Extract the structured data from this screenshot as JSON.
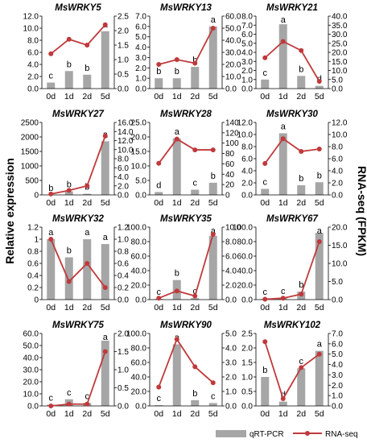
{
  "figure": {
    "left_axis_label": "Relative expression",
    "right_axis_label": "RNA-seq (FPKM)",
    "legend": {
      "bar_label": "qRT-PCR",
      "line_label": "RNA-seq"
    },
    "colors": {
      "bar": "#a6a6a6",
      "line": "#c0393b"
    }
  },
  "chart_data": [
    {
      "type": "bar",
      "title": "MsWRKY5",
      "categories": [
        "0d",
        "1d",
        "2d",
        "5d"
      ],
      "series": [
        {
          "name": "qRT-PCR",
          "axis": "left",
          "values": [
            1.0,
            2.9,
            2.3,
            9.5
          ],
          "letters": [
            "c",
            "b",
            "b",
            "a"
          ]
        },
        {
          "name": "RNA-seq",
          "axis": "right",
          "type": "line",
          "values": [
            1.2,
            1.7,
            1.5,
            2.2
          ]
        }
      ],
      "left_ticks": [
        "0.0",
        "2.0",
        "4.0",
        "6.0",
        "8.0",
        "10.0",
        "12.0"
      ],
      "left_max": 12,
      "right_ticks": [
        "0.0",
        "0.5",
        "1.0",
        "1.5",
        "2.0",
        "2.5"
      ],
      "right_max": 2.5
    },
    {
      "type": "bar",
      "title": "MsWRKY13",
      "categories": [
        "0d",
        "1d",
        "2d",
        "5d"
      ],
      "series": [
        {
          "name": "qRT-PCR",
          "axis": "left",
          "values": [
            1.0,
            1.0,
            2.1,
            6.0
          ],
          "letters": [
            "b",
            "b",
            "b",
            "a"
          ]
        },
        {
          "name": "RNA-seq",
          "axis": "right",
          "type": "line",
          "values": [
            20,
            24,
            21,
            50
          ]
        }
      ],
      "left_ticks": [
        "0.0",
        "1.0",
        "2.0",
        "3.0",
        "4.0",
        "5.0",
        "6.0",
        "7.0"
      ],
      "left_max": 7,
      "right_ticks": [
        "0.0",
        "10.0",
        "20.0",
        "30.0",
        "40.0",
        "50.0",
        "60.0"
      ],
      "right_max": 60
    },
    {
      "type": "bar",
      "title": "MsWRKY21",
      "categories": [
        "0d",
        "1d",
        "2d",
        "5d"
      ],
      "series": [
        {
          "name": "qRT-PCR",
          "axis": "left",
          "values": [
            1.0,
            7.1,
            1.4,
            0.3
          ],
          "letters": [
            "c",
            "a",
            "b",
            "d"
          ]
        },
        {
          "name": "RNA-seq",
          "axis": "right",
          "type": "line",
          "values": [
            17,
            26,
            21,
            4
          ]
        }
      ],
      "left_ticks": [
        "0.0",
        "1.0",
        "2.0",
        "3.0",
        "4.0",
        "5.0",
        "6.0",
        "7.0",
        "8.0"
      ],
      "left_max": 8,
      "right_ticks": [
        "0.0",
        "5.0",
        "10.0",
        "15.0",
        "20.0",
        "25.0",
        "30.0",
        "35.0",
        "40.0"
      ],
      "right_max": 40
    },
    {
      "type": "bar",
      "title": "MsWRKY27",
      "categories": [
        "0d",
        "1d",
        "2d",
        "5d"
      ],
      "series": [
        {
          "name": "qRT-PCR",
          "axis": "left",
          "values": [
            1,
            120,
            40,
            1850
          ],
          "letters": [
            "b",
            "b",
            "b",
            "a"
          ]
        },
        {
          "name": "RNA-seq",
          "axis": "right",
          "type": "line",
          "values": [
            0.2,
            1.0,
            2.0,
            13.0
          ]
        }
      ],
      "left_ticks": [
        "0",
        "500",
        "1000",
        "1500",
        "2000",
        "2500"
      ],
      "left_max": 2500,
      "right_ticks": [
        "0.0",
        "2.0",
        "4.0",
        "6.0",
        "8.0",
        "10.0",
        "12.0",
        "14.0",
        "16.0"
      ],
      "right_max": 16
    },
    {
      "type": "bar",
      "title": "MsWRKY28",
      "categories": [
        "0d",
        "1d",
        "2d",
        "5d"
      ],
      "series": [
        {
          "name": "qRT-PCR",
          "axis": "left",
          "values": [
            1.0,
            19.5,
            1.8,
            4.2
          ],
          "letters": [
            "d",
            "a",
            "c",
            "b"
          ]
        },
        {
          "name": "RNA-seq",
          "axis": "right",
          "type": "line",
          "values": [
            61,
            108,
            87,
            87
          ]
        }
      ],
      "left_ticks": [
        "0.0",
        "5.0",
        "10.0",
        "15.0",
        "20.0",
        "25.0"
      ],
      "left_max": 25,
      "right_ticks": [
        "0",
        "20",
        "40",
        "60",
        "80",
        "100",
        "120",
        "140"
      ],
      "right_max": 140
    },
    {
      "type": "bar",
      "title": "MsWRKY30",
      "categories": [
        "0d",
        "1d",
        "2d",
        "5d"
      ],
      "series": [
        {
          "name": "qRT-PCR",
          "axis": "left",
          "values": [
            1.0,
            10.2,
            1.6,
            2.1
          ],
          "letters": [
            "c",
            "a",
            "b",
            "b"
          ]
        },
        {
          "name": "RNA-seq",
          "axis": "right",
          "type": "line",
          "values": [
            5.2,
            9.3,
            7.2,
            7.6
          ]
        }
      ],
      "left_ticks": [
        "0.0",
        "2.0",
        "4.0",
        "6.0",
        "8.0",
        "10.0",
        "12.0"
      ],
      "left_max": 12,
      "right_ticks": [
        "0.0",
        "2.0",
        "4.0",
        "6.0",
        "8.0",
        "10.0",
        "12.0"
      ],
      "right_max": 12
    },
    {
      "type": "bar",
      "title": "MsWRKY32",
      "categories": [
        "0d",
        "1d",
        "2d",
        "5d"
      ],
      "series": [
        {
          "name": "qRT-PCR",
          "axis": "left",
          "values": [
            1.0,
            0.7,
            1.0,
            0.92
          ],
          "letters": [
            "a",
            "b",
            "a",
            "a"
          ]
        },
        {
          "name": "RNA-seq",
          "axis": "right",
          "type": "line",
          "values": [
            1.0,
            0.3,
            0.6,
            0.2
          ]
        }
      ],
      "left_ticks": [
        "0",
        "0.2",
        "0.4",
        "0.6",
        "0.8",
        "1",
        "1.2"
      ],
      "left_max": 1.2,
      "right_ticks": [
        "0.0",
        "0.2",
        "0.4",
        "0.6",
        "0.8",
        "1.0",
        "1.2"
      ],
      "right_max": 1.2
    },
    {
      "type": "bar",
      "title": "MsWRKY35",
      "categories": [
        "0d",
        "1d",
        "2d",
        "5d"
      ],
      "series": [
        {
          "name": "qRT-PCR",
          "axis": "left",
          "values": [
            1.0,
            27,
            2,
            88
          ],
          "letters": [
            "c",
            "b",
            "c",
            "a"
          ]
        },
        {
          "name": "RNA-seq",
          "axis": "right",
          "type": "line",
          "values": [
            0.2,
            1.2,
            0.5,
            9.0
          ]
        }
      ],
      "left_ticks": [
        "0.0",
        "20.0",
        "40.0",
        "60.0",
        "80.0",
        "100.0"
      ],
      "left_max": 100,
      "right_ticks": [
        "0.0",
        "2.0",
        "4.0",
        "6.0",
        "8.0",
        "10.0"
      ],
      "right_max": 10
    },
    {
      "type": "bar",
      "title": "MsWRKY67",
      "categories": [
        "0d",
        "1d",
        "2d",
        "5d"
      ],
      "series": [
        {
          "name": "qRT-PCR",
          "axis": "left",
          "values": [
            1.0,
            2.0,
            11,
            92
          ],
          "letters": [
            "c",
            "c",
            "b",
            "a"
          ]
        },
        {
          "name": "RNA-seq",
          "axis": "right",
          "type": "line",
          "values": [
            0.1,
            0.4,
            1.5,
            16.0
          ]
        }
      ],
      "left_ticks": [
        "0.0",
        "20.0",
        "40.0",
        "60.0",
        "80.0",
        "100.0"
      ],
      "left_max": 100,
      "right_ticks": [
        "0.0",
        "5.0",
        "10.0",
        "15.0",
        "20.0"
      ],
      "right_max": 20
    },
    {
      "type": "bar",
      "title": "MsWRKY75",
      "categories": [
        "0d",
        "1d",
        "2d",
        "5d"
      ],
      "series": [
        {
          "name": "qRT-PCR",
          "axis": "left",
          "values": [
            1.0,
            5.5,
            2.5,
            54
          ],
          "letters": [
            "c",
            "c",
            "c",
            "a"
          ]
        },
        {
          "name": "RNA-seq",
          "axis": "right",
          "type": "line",
          "values": [
            0.0,
            0.05,
            0.05,
            1.5
          ]
        }
      ],
      "left_ticks": [
        "0.0",
        "10.0",
        "20.0",
        "30.0",
        "40.0",
        "50.0",
        "60.0"
      ],
      "left_max": 60,
      "right_ticks": [
        "0.0",
        "0.5",
        "1.0",
        "1.5",
        "2.0"
      ],
      "right_max": 2
    },
    {
      "type": "bar",
      "title": "MsWRKY90",
      "categories": [
        "0d",
        "1d",
        "2d",
        "5d"
      ],
      "series": [
        {
          "name": "qRT-PCR",
          "axis": "left",
          "values": [
            1.0,
            85,
            8,
            4
          ],
          "letters": [
            "c",
            "a",
            "b",
            "c"
          ]
        },
        {
          "name": "RNA-seq",
          "axis": "right",
          "type": "line",
          "values": [
            1.3,
            4.6,
            2.7,
            1.6
          ]
        }
      ],
      "left_ticks": [
        "0.0",
        "20.0",
        "40.0",
        "60.0",
        "80.0",
        "100.0"
      ],
      "left_max": 100,
      "right_ticks": [
        "0.0",
        "1.0",
        "2.0",
        "3.0",
        "4.0",
        "5.0"
      ],
      "right_max": 5
    },
    {
      "type": "bar",
      "title": "MsWRKY102",
      "categories": [
        "0d",
        "1d",
        "2d",
        "5d"
      ],
      "series": [
        {
          "name": "qRT-PCR",
          "axis": "left",
          "values": [
            1.0,
            0.15,
            1.3,
            1.9
          ],
          "letters": [
            "b",
            "d",
            "c",
            "a"
          ]
        },
        {
          "name": "RNA-seq",
          "axis": "right",
          "type": "line",
          "values": [
            6.2,
            0.7,
            3.7,
            5.0
          ]
        }
      ],
      "left_ticks": [
        "0.0",
        "0.5",
        "1.0",
        "1.5",
        "2.0",
        "2.5"
      ],
      "left_max": 2.5,
      "right_ticks": [
        "0.0",
        "1.0",
        "2.0",
        "3.0",
        "4.0",
        "5.0",
        "6.0",
        "7.0"
      ],
      "right_max": 7
    }
  ]
}
